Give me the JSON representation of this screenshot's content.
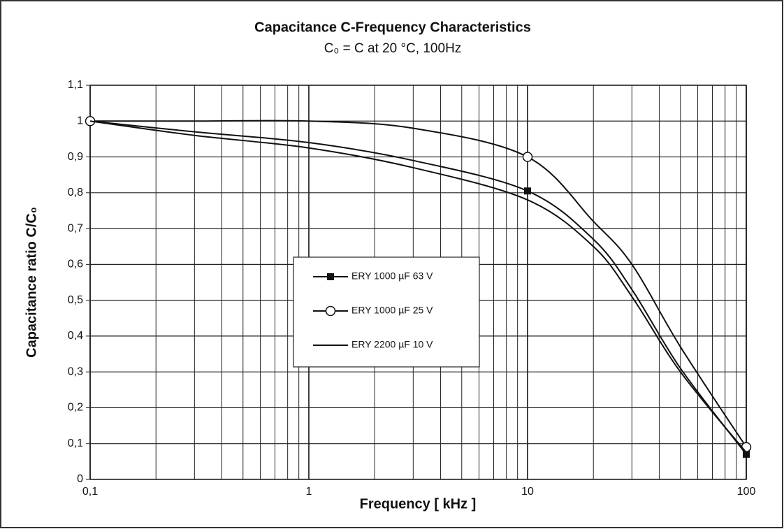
{
  "chart_data": {
    "type": "line",
    "title": "Capacitance C-Frequency Characteristics",
    "subtitle": "C₀ = C at 20 °C, 100Hz",
    "x_label": "Frequency [ kHz ]",
    "y_label": "Capacitance ratio C/C₀",
    "x_scale": "log",
    "xlim": [
      0.1,
      100
    ],
    "xticks": [
      {
        "value": 0.1,
        "label": "0,1"
      },
      1,
      10,
      100
    ],
    "xminorticks": [
      0.2,
      0.3,
      0.4,
      0.5,
      0.6,
      0.7,
      0.8,
      0.9,
      2,
      3,
      4,
      5,
      6,
      7,
      8,
      9,
      20,
      30,
      40,
      50,
      60,
      70,
      80,
      90
    ],
    "ylim": [
      0,
      1.1
    ],
    "yticks": [
      0,
      {
        "value": 0.1,
        "label": "0,1"
      },
      {
        "value": 0.2,
        "label": "0,2"
      },
      {
        "value": 0.3,
        "label": "0,3"
      },
      {
        "value": 0.4,
        "label": "0,4"
      },
      {
        "value": 0.5,
        "label": "0,5"
      },
      {
        "value": 0.6,
        "label": "0,6"
      },
      {
        "value": 0.7,
        "label": "0,7"
      },
      {
        "value": 0.8,
        "label": "0,8"
      },
      {
        "value": 0.9,
        "label": "0,9"
      },
      1,
      {
        "value": 1.1,
        "label": "1,1"
      }
    ],
    "grid": true,
    "x": [
      0.1,
      0.3,
      1,
      3,
      10,
      20,
      30,
      50,
      100
    ],
    "series": [
      {
        "name": "ERY 1000 µF 63 V",
        "color": "#111111",
        "marker": "square",
        "markers": [
          true,
          false,
          false,
          false,
          true,
          false,
          false,
          false,
          true
        ],
        "values": [
          1,
          0.97,
          0.94,
          0.89,
          0.805,
          0.67,
          0.53,
          0.31,
          0.07
        ]
      },
      {
        "name": "ERY 1000 µF 25 V",
        "color": "#111111",
        "marker": "circle",
        "markers": [
          true,
          false,
          false,
          false,
          true,
          false,
          false,
          false,
          true
        ],
        "values": [
          1,
          1.0,
          1.0,
          0.98,
          0.9,
          0.72,
          0.6,
          0.37,
          0.09
        ]
      },
      {
        "name": "ERY 2200 µF 10 V",
        "color": "#111111",
        "marker": "none",
        "markers": [
          false,
          false,
          false,
          false,
          false,
          false,
          false,
          false,
          false
        ],
        "values": [
          1,
          0.96,
          0.925,
          0.87,
          0.78,
          0.65,
          0.51,
          0.3,
          0.075
        ]
      }
    ]
  }
}
